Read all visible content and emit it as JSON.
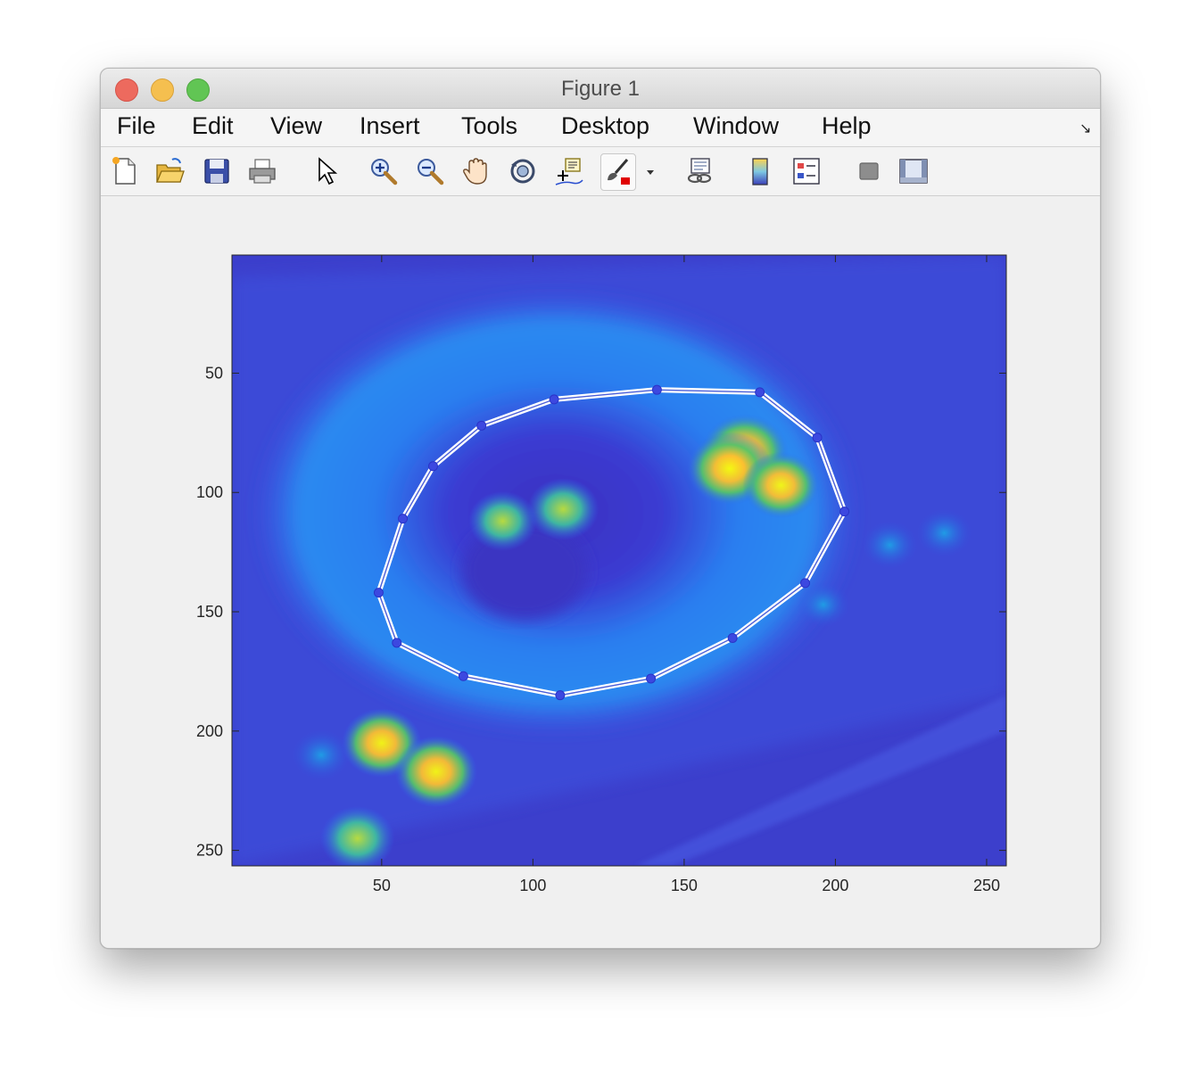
{
  "window": {
    "title": "Figure 1"
  },
  "menu": [
    "File",
    "Edit",
    "View",
    "Insert",
    "Tools",
    "Desktop",
    "Window",
    "Help"
  ],
  "toolbar": [
    {
      "icon": "new-figure-icon"
    },
    {
      "icon": "open-file-icon"
    },
    {
      "icon": "save-icon"
    },
    {
      "icon": "print-icon"
    },
    {
      "icon": "edit-plot-arrow-icon"
    },
    {
      "icon": "zoom-in-icon"
    },
    {
      "icon": "zoom-out-icon"
    },
    {
      "icon": "pan-hand-icon"
    },
    {
      "icon": "rotate-3d-icon"
    },
    {
      "icon": "data-cursor-icon"
    },
    {
      "icon": "brush-icon"
    },
    {
      "icon": "brush-dropdown-icon"
    },
    {
      "icon": "link-plot-icon"
    },
    {
      "icon": "colorbar-icon"
    },
    {
      "icon": "legend-icon"
    },
    {
      "icon": "hide-plot-tools-icon"
    },
    {
      "icon": "show-plot-tools-icon"
    }
  ],
  "chart_data": {
    "type": "heatmap",
    "colormap": "parula",
    "xlim": [
      0.5,
      256.5
    ],
    "ylim": [
      0.5,
      256.5
    ],
    "y_direction": "reversed",
    "xticks": [
      50,
      100,
      150,
      200,
      250
    ],
    "yticks": [
      50,
      100,
      150,
      200,
      250
    ],
    "hotspots": [
      {
        "x": 170,
        "y": 83,
        "level": 0.95
      },
      {
        "x": 165,
        "y": 90,
        "level": 0.9
      },
      {
        "x": 182,
        "y": 97,
        "level": 0.75
      },
      {
        "x": 110,
        "y": 107,
        "level": 0.65
      },
      {
        "x": 90,
        "y": 112,
        "level": 0.6
      },
      {
        "x": 50,
        "y": 205,
        "level": 0.8
      },
      {
        "x": 68,
        "y": 217,
        "level": 0.85
      },
      {
        "x": 42,
        "y": 245,
        "level": 0.7
      },
      {
        "x": 30,
        "y": 210,
        "level": 0.4
      },
      {
        "x": 218,
        "y": 122,
        "level": 0.35
      },
      {
        "x": 236,
        "y": 117,
        "level": 0.35
      },
      {
        "x": 196,
        "y": 147,
        "level": 0.3
      }
    ],
    "polygon": [
      [
        141,
        57
      ],
      [
        175,
        58
      ],
      [
        194,
        77
      ],
      [
        203,
        108
      ],
      [
        190,
        138
      ],
      [
        166,
        161
      ],
      [
        139,
        178
      ],
      [
        109,
        185
      ],
      [
        77,
        177
      ],
      [
        55,
        163
      ],
      [
        49,
        142
      ],
      [
        57,
        111
      ],
      [
        67,
        89
      ],
      [
        83,
        72
      ],
      [
        107,
        61
      ]
    ]
  }
}
